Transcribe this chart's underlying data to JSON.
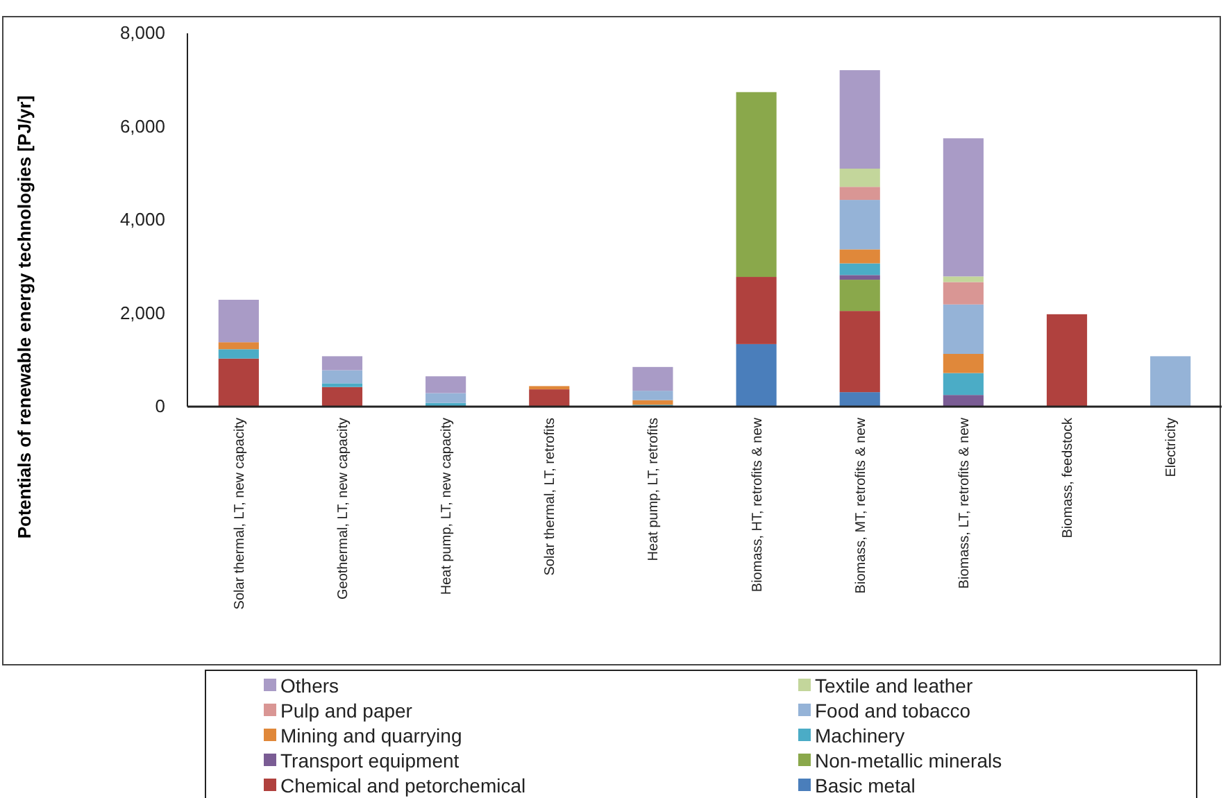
{
  "chart_data": {
    "type": "bar",
    "stacked": true,
    "ylabel": "Potentials of renewable energy technologies [PJ/yr]",
    "categories": [
      "Solar thermal, LT, new capacity",
      "Geothermal, LT, new capacity",
      "Heat pump, LT, new capacity",
      "Solar thermal, LT, retrofits",
      "Heat pump, LT, retrofits",
      "Biomass, HT, retrofits & new",
      "Biomass, MT, retrofits & new",
      "Biomass, LT, retrofits & new",
      "Biomass, feedstock",
      "Electricity"
    ],
    "ylim": [
      0,
      8000
    ],
    "yticks": [
      0,
      {
        "value": 2000,
        "label": "2,000"
      },
      {
        "value": 4000,
        "label": "4,000"
      },
      {
        "value": 6000,
        "label": "6,000"
      },
      {
        "value": 8000,
        "label": "8,000"
      }
    ],
    "grid": false,
    "legend": "bottom",
    "series": [
      {
        "name": "Basic metal",
        "color": "#4a7ebb",
        "values": [
          null,
          null,
          null,
          null,
          null,
          1340,
          310,
          null,
          null,
          null
        ]
      },
      {
        "name": "Chemical and petorchemical",
        "color": "#b0413e",
        "values": [
          1030,
          420,
          null,
          370,
          null,
          1440,
          1740,
          null,
          1980,
          null
        ]
      },
      {
        "name": "Non-metallic minerals",
        "color": "#8aa84b",
        "values": [
          null,
          null,
          null,
          null,
          null,
          3960,
          670,
          null,
          null,
          null
        ]
      },
      {
        "name": "Transport equipment",
        "color": "#7a5c94",
        "values": [
          null,
          null,
          null,
          null,
          null,
          null,
          100,
          250,
          null,
          null
        ]
      },
      {
        "name": "Machinery",
        "color": "#4bacc6",
        "values": [
          200,
          80,
          80,
          null,
          40,
          null,
          250,
          470,
          null,
          null
        ]
      },
      {
        "name": "Mining and quarrying",
        "color": "#e0883a",
        "values": [
          150,
          null,
          null,
          70,
          100,
          null,
          300,
          410,
          null,
          null
        ]
      },
      {
        "name": "Food and tobacco",
        "color": "#95b3d7",
        "values": [
          null,
          280,
          210,
          null,
          200,
          null,
          1060,
          1060,
          null,
          1080
        ]
      },
      {
        "name": "Pulp and paper",
        "color": "#d99694",
        "values": [
          null,
          null,
          null,
          null,
          null,
          null,
          280,
          480,
          null,
          null
        ]
      },
      {
        "name": "Textile and leather",
        "color": "#c3d69b",
        "values": [
          null,
          null,
          null,
          null,
          null,
          null,
          390,
          120,
          null,
          null
        ]
      },
      {
        "name": "Others",
        "color": "#a99bc6",
        "values": [
          910,
          300,
          360,
          null,
          510,
          null,
          2110,
          2960,
          null,
          null
        ]
      }
    ]
  }
}
